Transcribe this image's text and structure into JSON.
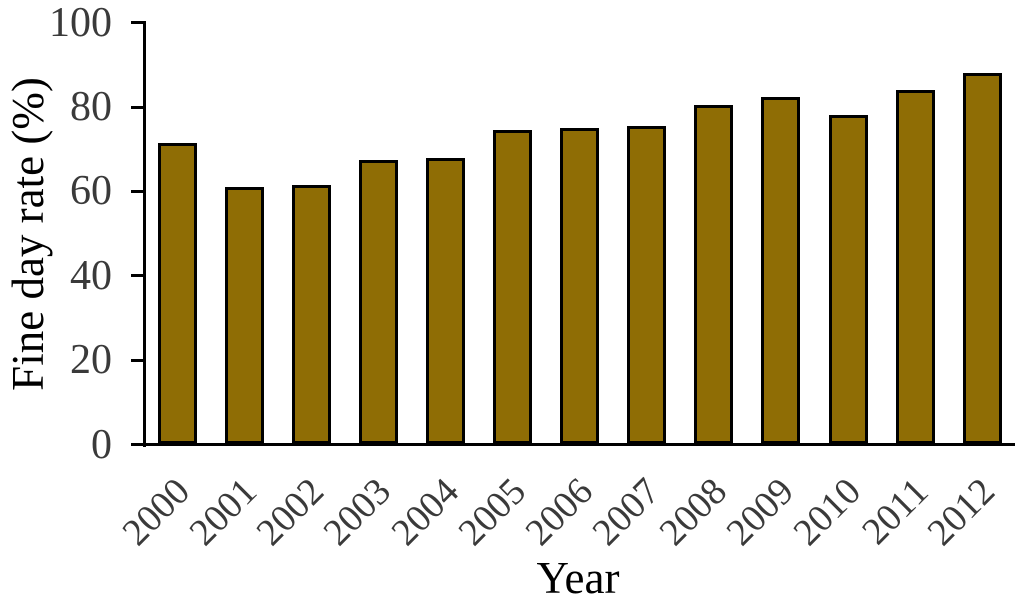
{
  "chart_data": {
    "type": "bar",
    "title": "",
    "xlabel": "Year",
    "ylabel": "Fine day rate (%)",
    "categories": [
      "2000",
      "2001",
      "2002",
      "2003",
      "2004",
      "2005",
      "2006",
      "2007",
      "2008",
      "2009",
      "2010",
      "2011",
      "2012"
    ],
    "values": [
      71.5,
      61,
      61.5,
      67.5,
      68,
      74.5,
      75,
      75.5,
      80.5,
      82.5,
      78,
      84,
      88
    ],
    "ylim": [
      0,
      100
    ],
    "yticks": [
      0,
      20,
      40,
      60,
      80,
      100
    ],
    "grid": false,
    "legend": null,
    "bar_color": "#8F6D05",
    "bar_border_color": "#000000",
    "axis_color": "#000000",
    "tick_label_color": "#3a3a3a",
    "title_color": "#000000"
  }
}
